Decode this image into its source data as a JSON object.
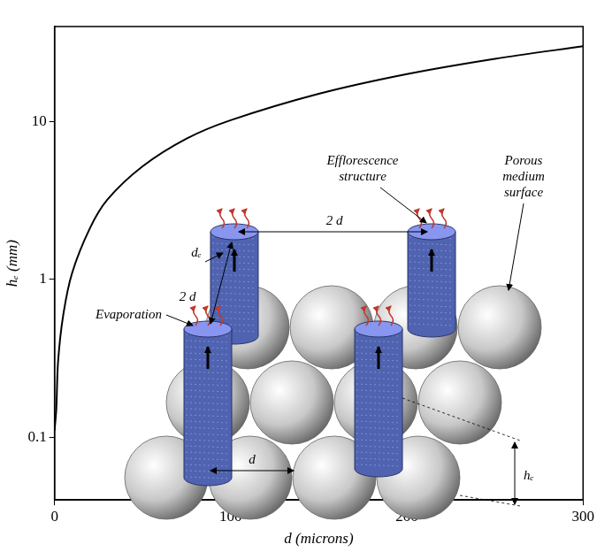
{
  "chart_data": {
    "type": "line",
    "x_label": "d (microns)",
    "y_label": "hₑ (mm)",
    "x": [
      0,
      1,
      2,
      5,
      10,
      20,
      30,
      50,
      75,
      100,
      150,
      200,
      250,
      300
    ],
    "values": [
      0.11,
      0.15,
      0.3,
      0.6,
      1.1,
      2.1,
      3.2,
      5.2,
      7.8,
      10.2,
      15,
      20,
      25,
      30
    ],
    "color": "#000000",
    "log": "y",
    "xlim": [
      0,
      300
    ],
    "xticks": [
      0,
      100,
      200,
      300
    ],
    "ylim": [
      0.04,
      40
    ],
    "yticks": [
      0.1,
      1,
      10
    ],
    "grid": false,
    "annotations": [
      "Efflorescence structure",
      "Porous medium surface",
      "Evaporation",
      "dₑ",
      "2 d",
      "2 d",
      "d",
      "hₑ"
    ]
  }
}
